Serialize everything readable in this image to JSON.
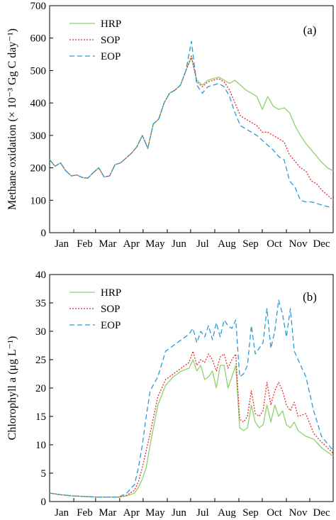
{
  "months": [
    "Jan",
    "Feb",
    "Mar",
    "Apr",
    "May",
    "Jun",
    "Jul",
    "Aug",
    "Sep",
    "Oct",
    "Nov",
    "Dec"
  ],
  "chart_data": [
    {
      "type": "line",
      "panel_label": "(a)",
      "ylabel": "Methane oxidation (× 10⁻³ Gg C day⁻¹)",
      "ylim": [
        0,
        700
      ],
      "yticks": [
        0,
        100,
        200,
        300,
        400,
        500,
        600,
        700
      ],
      "x_unit": "day of year",
      "xlim": [
        1,
        365
      ],
      "legend_position": "top-left",
      "grid": false,
      "series": [
        {
          "name": "HRP",
          "color": "#8fd16a",
          "style": "solid",
          "x": [
            1,
            8,
            15,
            22,
            29,
            36,
            43,
            50,
            57,
            64,
            71,
            78,
            85,
            92,
            99,
            106,
            113,
            120,
            127,
            134,
            141,
            148,
            155,
            162,
            169,
            176,
            183,
            190,
            197,
            204,
            211,
            218,
            225,
            232,
            239,
            246,
            253,
            260,
            267,
            274,
            281,
            288,
            295,
            302,
            309,
            316,
            323,
            330,
            337,
            344,
            351,
            358,
            365
          ],
          "y": [
            225,
            205,
            215,
            190,
            175,
            178,
            170,
            168,
            185,
            200,
            172,
            175,
            210,
            215,
            230,
            245,
            265,
            300,
            260,
            335,
            350,
            400,
            430,
            440,
            455,
            500,
            540,
            470,
            455,
            470,
            475,
            480,
            470,
            460,
            470,
            455,
            440,
            430,
            420,
            380,
            420,
            390,
            380,
            385,
            370,
            330,
            300,
            275,
            255,
            235,
            215,
            200,
            190
          ]
        },
        {
          "name": "SOP",
          "color": "#e8282b",
          "style": "dotted",
          "x": [
            1,
            8,
            15,
            22,
            29,
            36,
            43,
            50,
            57,
            64,
            71,
            78,
            85,
            92,
            99,
            106,
            113,
            120,
            127,
            134,
            141,
            148,
            155,
            162,
            169,
            176,
            183,
            190,
            197,
            204,
            211,
            218,
            225,
            232,
            239,
            246,
            253,
            260,
            267,
            274,
            281,
            288,
            295,
            302,
            309,
            316,
            323,
            330,
            337,
            344,
            351,
            358,
            365
          ],
          "y": [
            225,
            205,
            215,
            190,
            175,
            178,
            170,
            168,
            185,
            200,
            172,
            175,
            210,
            215,
            230,
            245,
            265,
            300,
            260,
            335,
            350,
            400,
            430,
            440,
            455,
            500,
            545,
            465,
            450,
            465,
            470,
            475,
            465,
            440,
            400,
            360,
            350,
            340,
            330,
            310,
            310,
            300,
            290,
            280,
            240,
            220,
            200,
            190,
            160,
            150,
            130,
            115,
            100
          ]
        },
        {
          "name": "EOP",
          "color": "#2b9ad6",
          "style": "dashed",
          "x": [
            1,
            8,
            15,
            22,
            29,
            36,
            43,
            50,
            57,
            64,
            71,
            78,
            85,
            92,
            99,
            106,
            113,
            120,
            127,
            134,
            141,
            148,
            155,
            162,
            169,
            176,
            183,
            190,
            197,
            204,
            211,
            218,
            225,
            232,
            239,
            246,
            253,
            260,
            267,
            274,
            281,
            288,
            295,
            302,
            309,
            316,
            323,
            330,
            337,
            344,
            351,
            358,
            365
          ],
          "y": [
            225,
            205,
            215,
            190,
            175,
            178,
            170,
            168,
            185,
            200,
            172,
            175,
            210,
            215,
            230,
            245,
            265,
            300,
            260,
            335,
            350,
            400,
            430,
            440,
            455,
            500,
            590,
            455,
            430,
            450,
            455,
            460,
            450,
            420,
            370,
            330,
            320,
            310,
            300,
            285,
            270,
            255,
            235,
            225,
            160,
            140,
            100,
            95,
            95,
            90,
            85,
            80,
            78
          ]
        }
      ]
    },
    {
      "type": "line",
      "panel_label": "(b)",
      "ylabel": "Chlorophyll a (μg L⁻¹)",
      "ylim": [
        0,
        40
      ],
      "yticks": [
        0,
        5,
        10,
        15,
        20,
        25,
        30,
        35,
        40
      ],
      "x_unit": "day of year",
      "xlim": [
        1,
        365
      ],
      "legend_position": "top-left",
      "grid": false,
      "series": [
        {
          "name": "HRP",
          "color": "#8fd16a",
          "style": "solid",
          "x": [
            1,
            15,
            30,
            45,
            60,
            75,
            90,
            100,
            110,
            115,
            120,
            125,
            130,
            140,
            150,
            160,
            170,
            180,
            185,
            190,
            195,
            200,
            205,
            210,
            215,
            220,
            225,
            230,
            235,
            240,
            245,
            250,
            255,
            260,
            265,
            270,
            275,
            280,
            285,
            290,
            295,
            300,
            305,
            310,
            315,
            320,
            330,
            340,
            350,
            365
          ],
          "y": [
            1.5,
            1.2,
            1.0,
            0.9,
            0.8,
            0.8,
            0.8,
            1.0,
            1.5,
            2.5,
            4.0,
            6.0,
            10.0,
            17.0,
            20.5,
            22.0,
            23.0,
            23.5,
            25.0,
            23.0,
            24.0,
            21.5,
            22.0,
            23.0,
            20.0,
            24.0,
            24.0,
            20.0,
            22.0,
            24.0,
            13.0,
            12.5,
            13.0,
            17.0,
            14.0,
            13.0,
            13.5,
            17.0,
            14.0,
            17.0,
            15.0,
            16.0,
            13.5,
            13.0,
            14.0,
            12.5,
            11.5,
            11.0,
            9.5,
            8.0
          ]
        },
        {
          "name": "SOP",
          "color": "#e8282b",
          "style": "dotted",
          "x": [
            1,
            15,
            30,
            45,
            60,
            75,
            90,
            100,
            110,
            115,
            120,
            125,
            130,
            140,
            150,
            160,
            170,
            180,
            185,
            190,
            195,
            200,
            205,
            210,
            215,
            220,
            225,
            230,
            235,
            240,
            245,
            250,
            255,
            260,
            265,
            270,
            275,
            280,
            285,
            290,
            295,
            300,
            305,
            310,
            315,
            320,
            330,
            340,
            350,
            365
          ],
          "y": [
            1.5,
            1.2,
            1.0,
            0.9,
            0.8,
            0.8,
            0.8,
            1.1,
            2.0,
            3.5,
            6.0,
            9.0,
            12.0,
            18.5,
            21.5,
            22.5,
            23.5,
            24.5,
            26.5,
            24.0,
            25.0,
            24.5,
            26.0,
            25.0,
            23.0,
            25.5,
            26.0,
            23.5,
            25.0,
            26.0,
            14.5,
            14.0,
            15.0,
            19.5,
            15.5,
            15.0,
            16.0,
            21.0,
            17.0,
            19.5,
            21.0,
            19.5,
            17.0,
            16.0,
            17.5,
            15.0,
            15.5,
            12.0,
            10.5,
            8.5
          ]
        },
        {
          "name": "EOP",
          "color": "#2b9ad6",
          "style": "dashed",
          "x": [
            1,
            15,
            30,
            45,
            60,
            75,
            90,
            100,
            110,
            115,
            120,
            125,
            130,
            140,
            150,
            160,
            170,
            180,
            185,
            190,
            195,
            200,
            205,
            210,
            215,
            220,
            225,
            230,
            235,
            240,
            245,
            250,
            255,
            260,
            265,
            270,
            275,
            280,
            285,
            290,
            295,
            300,
            305,
            310,
            315,
            320,
            330,
            340,
            350,
            365
          ],
          "y": [
            1.5,
            1.2,
            1.0,
            0.9,
            0.8,
            0.8,
            0.8,
            1.5,
            3.0,
            6.0,
            10.0,
            15.0,
            19.5,
            22.0,
            26.5,
            27.5,
            28.5,
            29.5,
            30.5,
            28.0,
            30.0,
            29.0,
            31.0,
            28.5,
            31.5,
            29.0,
            32.0,
            31.0,
            30.5,
            32.0,
            22.0,
            22.5,
            24.0,
            31.0,
            26.0,
            27.0,
            28.0,
            34.0,
            27.0,
            30.0,
            35.5,
            33.0,
            29.0,
            34.0,
            26.5,
            25.0,
            22.0,
            16.0,
            11.5,
            9.0
          ]
        }
      ]
    }
  ]
}
